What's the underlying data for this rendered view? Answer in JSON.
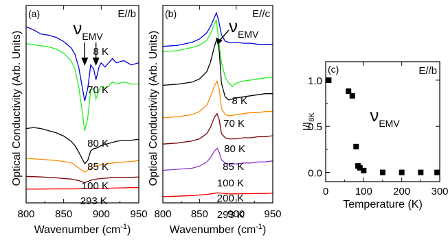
{
  "chart_data": [
    {
      "panel": "(a)",
      "type": "line",
      "note": "E//b",
      "xlabel": "Wavenumber (cm",
      "xlabel_sup": "-1",
      "xlabel_tail": ")",
      "ylabel": "Optical Conductivity (Arb. Units)",
      "xlim": [
        800,
        950
      ],
      "xticks": [
        800,
        850,
        900,
        950
      ],
      "annotation": {
        "text": "ν",
        "sub": "EMV",
        "arrows_at": [
          878,
          893
        ]
      },
      "series": [
        {
          "name": "8 K",
          "color": "#0000dd",
          "x": [
            800,
            810,
            820,
            830,
            840,
            850,
            860,
            865,
            870,
            875,
            878,
            882,
            886,
            890,
            893,
            897,
            900,
            905,
            910,
            915,
            920,
            930,
            940,
            950
          ],
          "y": [
            9.2,
            9.05,
            8.85,
            8.8,
            8.7,
            8.5,
            8.2,
            7.9,
            7.3,
            6.3,
            5.7,
            6.3,
            7.4,
            7.2,
            6.7,
            7.3,
            7.5,
            7.3,
            7.5,
            7.7,
            7.5,
            7.6,
            7.4,
            7.5
          ]
        },
        {
          "name": "70 K",
          "color": "#22ee22",
          "x": [
            800,
            810,
            820,
            830,
            840,
            850,
            860,
            865,
            870,
            875,
            878,
            882,
            886,
            890,
            893,
            897,
            900,
            905,
            910,
            915,
            920,
            930,
            940,
            950
          ],
          "y": [
            8.4,
            8.35,
            8.3,
            8.25,
            8.15,
            7.95,
            7.6,
            7.2,
            6.4,
            5.1,
            4.3,
            4.9,
            6.2,
            6.3,
            5.8,
            6.2,
            6.4,
            6.3,
            6.4,
            6.6,
            6.5,
            6.6,
            6.5,
            6.5
          ]
        },
        {
          "name": "80 K",
          "color": "#000000",
          "x": [
            800,
            810,
            820,
            830,
            840,
            850,
            860,
            865,
            870,
            875,
            878,
            882,
            886,
            890,
            895,
            900,
            910,
            920,
            930,
            940,
            950
          ],
          "y": [
            4.4,
            4.45,
            4.4,
            4.3,
            4.2,
            4.05,
            3.8,
            3.6,
            3.3,
            2.95,
            2.75,
            2.9,
            3.35,
            3.45,
            3.5,
            3.6,
            3.7,
            3.8,
            3.85,
            3.85,
            3.9
          ]
        },
        {
          "name": "85 K",
          "color": "#ff8800",
          "x": [
            800,
            820,
            840,
            860,
            870,
            878,
            885,
            890,
            900,
            920,
            940,
            950
          ],
          "y": [
            3.0,
            2.95,
            2.9,
            2.8,
            2.55,
            2.35,
            2.5,
            2.6,
            2.7,
            2.8,
            2.85,
            2.9
          ]
        },
        {
          "name": "100 K",
          "color": "#7a0000",
          "x": [
            800,
            820,
            840,
            860,
            870,
            878,
            885,
            890,
            900,
            920,
            940,
            950
          ],
          "y": [
            2.15,
            2.12,
            2.08,
            2.02,
            1.95,
            1.85,
            1.95,
            2.0,
            2.05,
            2.1,
            2.1,
            2.12
          ]
        },
        {
          "name": "293 K",
          "color": "#ff0000",
          "x": [
            800,
            820,
            840,
            860,
            880,
            900,
            920,
            940,
            950
          ],
          "y": [
            1.55,
            1.55,
            1.56,
            1.56,
            1.57,
            1.58,
            1.6,
            1.62,
            1.62
          ]
        }
      ]
    },
    {
      "panel": "(b)",
      "type": "line",
      "note": "E//c",
      "xlabel": "Wavenumber (cm",
      "xlabel_sup": "-1",
      "xlabel_tail": ")",
      "ylabel": "Optical Conductivity (Arb. Units)",
      "xlim": [
        800,
        950
      ],
      "xticks": [
        800,
        850,
        900,
        950
      ],
      "annotation": {
        "text": "ν",
        "sub": "EMV",
        "arrow_at": 873
      },
      "series": [
        {
          "name": "8 K",
          "color": "#0000dd",
          "x": [
            800,
            820,
            840,
            850,
            860,
            865,
            870,
            873,
            876,
            880,
            885,
            890,
            900,
            910,
            920,
            930,
            940,
            950
          ],
          "y": [
            8.35,
            8.4,
            8.55,
            8.7,
            9.0,
            9.3,
            9.7,
            9.95,
            9.6,
            8.9,
            8.6,
            8.55,
            8.55,
            8.5,
            8.5,
            8.45,
            8.45,
            8.45
          ]
        },
        {
          "name": "70 K",
          "color": "#22ee22",
          "x": [
            800,
            820,
            840,
            850,
            860,
            865,
            870,
            873,
            876,
            880,
            885,
            890,
            895,
            900,
            910,
            920,
            930,
            940,
            950
          ],
          "y": [
            8.1,
            8.15,
            8.3,
            8.4,
            8.65,
            8.95,
            9.4,
            9.6,
            8.7,
            7.6,
            6.9,
            6.6,
            6.45,
            6.6,
            6.7,
            6.75,
            6.8,
            6.85,
            6.9
          ]
        },
        {
          "name": "80 K",
          "color": "#000000",
          "x": [
            800,
            820,
            840,
            850,
            860,
            865,
            870,
            874,
            877,
            880,
            885,
            890,
            900,
            910,
            920,
            930,
            940,
            950
          ],
          "y": [
            6.5,
            6.55,
            6.65,
            6.8,
            7.15,
            7.6,
            8.3,
            8.75,
            8.1,
            6.6,
            5.95,
            5.8,
            5.9,
            5.95,
            6.0,
            6.05,
            6.1,
            6.1
          ]
        },
        {
          "name": "85 K",
          "color": "#ff8800",
          "x": [
            800,
            820,
            840,
            850,
            860,
            865,
            870,
            874,
            877,
            880,
            885,
            890,
            900,
            910,
            920,
            930,
            940,
            950
          ],
          "y": [
            4.95,
            5.0,
            5.1,
            5.25,
            5.55,
            5.95,
            6.45,
            6.7,
            6.3,
            5.4,
            5.1,
            5.05,
            5.1,
            5.15,
            5.2,
            5.2,
            5.25,
            5.25
          ]
        },
        {
          "name": "100 K",
          "color": "#7a0000",
          "x": [
            800,
            820,
            840,
            850,
            860,
            865,
            870,
            874,
            877,
            880,
            885,
            890,
            900,
            910,
            920,
            930,
            940,
            950
          ],
          "y": [
            3.7,
            3.75,
            3.85,
            3.95,
            4.2,
            4.5,
            4.95,
            5.15,
            4.85,
            4.2,
            4.0,
            3.95,
            3.95,
            4.0,
            4.0,
            4.05,
            4.05,
            4.1
          ]
        },
        {
          "name": "200 K",
          "color": "#8833cc",
          "x": [
            800,
            820,
            840,
            850,
            860,
            865,
            870,
            874,
            877,
            880,
            885,
            890,
            900,
            910,
            920,
            930,
            940,
            950
          ],
          "y": [
            2.45,
            2.5,
            2.55,
            2.65,
            2.85,
            3.05,
            3.35,
            3.5,
            3.3,
            2.95,
            2.8,
            2.75,
            2.75,
            2.8,
            2.8,
            2.85,
            2.85,
            2.9
          ]
        },
        {
          "name": "293 K",
          "color": "#ff0000",
          "x": [
            800,
            820,
            840,
            860,
            870,
            875,
            880,
            890,
            900,
            920,
            940,
            950
          ],
          "y": [
            1.2,
            1.22,
            1.25,
            1.3,
            1.35,
            1.38,
            1.36,
            1.33,
            1.33,
            1.34,
            1.35,
            1.36
          ]
        }
      ]
    },
    {
      "panel": "(c)",
      "type": "scatter",
      "note": "E//b",
      "xlabel": "Temperature (K)",
      "ylabel": "I/I",
      "ylabel_sub": "8K",
      "xlim": [
        0,
        300
      ],
      "ylim": [
        -0.1,
        1.2
      ],
      "xticks": [
        0,
        100,
        200,
        300
      ],
      "yticks": [
        0.0,
        0.5,
        1.0
      ],
      "ytick_labels": [
        "0.0",
        "0.5",
        "1.0"
      ],
      "annotation": {
        "text": "ν",
        "sub": "EMV"
      },
      "x": [
        8,
        60,
        70,
        80,
        85,
        90,
        100,
        150,
        200,
        250,
        293
      ],
      "y": [
        1.0,
        0.88,
        0.83,
        0.28,
        0.07,
        0.05,
        0.02,
        0.0,
        0.0,
        0.0,
        0.0
      ]
    }
  ]
}
